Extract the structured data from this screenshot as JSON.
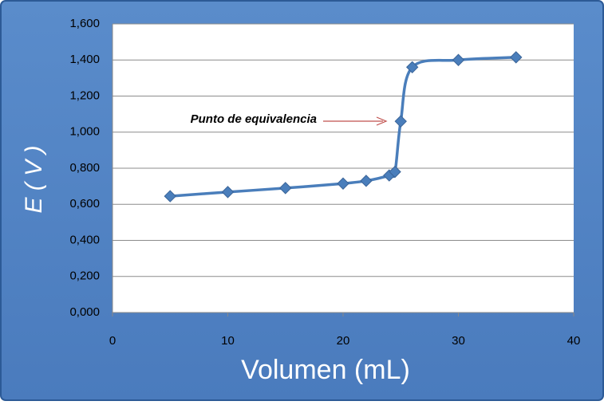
{
  "chart_data": {
    "type": "scatter",
    "line": "smooth",
    "color": "#4a7ebb",
    "x": [
      5,
      10,
      15,
      20,
      22,
      24,
      24.5,
      25,
      26,
      30,
      35
    ],
    "values": [
      0.645,
      0.668,
      0.69,
      0.715,
      0.73,
      0.76,
      0.78,
      1.06,
      1.36,
      1.4,
      1.415
    ],
    "xlim": [
      0,
      40
    ],
    "xticks": [
      0,
      10,
      20,
      30,
      40
    ],
    "ylim": [
      0,
      1.6
    ],
    "yticks": [
      {
        "value": 0,
        "label": "0,000"
      },
      {
        "value": 0.2,
        "label": "0,200"
      },
      {
        "value": 0.4,
        "label": "0,400"
      },
      {
        "value": 0.6,
        "label": "0,600"
      },
      {
        "value": 0.8,
        "label": "0,800"
      },
      {
        "value": 1.0,
        "label": "1,000"
      },
      {
        "value": 1.2,
        "label": "1,200"
      },
      {
        "value": 1.4,
        "label": "1,400"
      },
      {
        "value": 1.6,
        "label": "1,600"
      }
    ],
    "grid": true,
    "xlabel": "Volumen (mL)",
    "ylabel": "E ( V )",
    "annotation": "Punto de equivalencia"
  }
}
